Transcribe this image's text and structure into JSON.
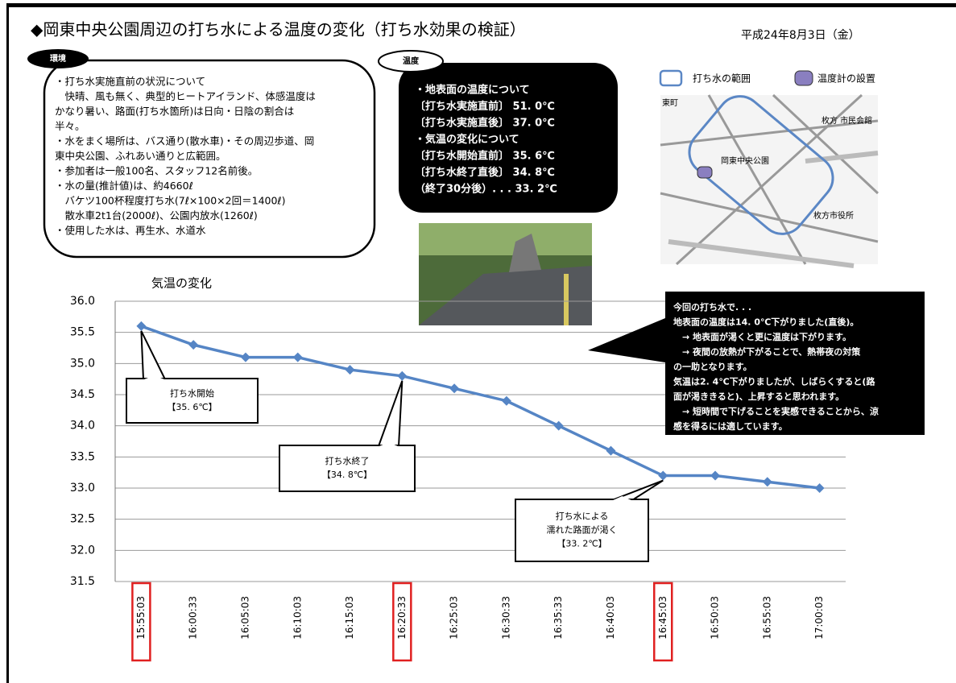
{
  "header": {
    "title": "◆岡東中央公園周辺の打ち水による温度の変化（打ち水効果の検証）",
    "date": "平成24年8月3日（金）"
  },
  "environment": {
    "label": "環境",
    "lines": [
      "・打ち水実施直前の状況について",
      "　快晴、風も無く、典型的ヒートアイランド、体感温度は",
      "かなり暑い、路面(打ち水箇所)は日向・日陰の割合は",
      "半々。",
      "・水をまく場所は、バス通り(散水車)・その周辺歩道、岡",
      "東中央公園、ふれあい通りと広範囲。",
      "・参加者は一般100名、スタッフ12名前後。",
      "・水の量(推計値)は、約4660ℓ",
      "　バケツ100杯程度打ち水(7ℓ×100×2回＝1400ℓ)",
      "　散水車2t1台(2000ℓ)、公園内放水(1260ℓ)",
      "・使用した水は、再生水、水道水"
    ]
  },
  "temperature": {
    "label": "温度",
    "lines": [
      "・地表面の温度について",
      "〔打ち水実施直前〕 51. 0℃",
      "〔打ち水実施直後〕 37. 0℃",
      "・気温の変化について",
      "〔打ち水開始直前〕 35. 6℃",
      "〔打ち水終了直後〕 34. 8℃",
      "（終了30分後）. . . 33. 2℃"
    ]
  },
  "map": {
    "legend": [
      "打ち水の範囲",
      "温度計の設置"
    ],
    "labels": [
      "東町",
      "枚方 市民会館",
      "岡東中央公園",
      "枚方市役所"
    ]
  },
  "summary": {
    "lines": [
      "今回の打ち水で. . .",
      "地表面の温度は14. 0℃下がりました(直後)。",
      "　→ 地表面が渇くと更に温度は下がります。",
      "　→ 夜間の放熱が下がることで、熱帯夜の対策",
      "の一助となります。",
      "気温は2. 4℃下がりましたが、しばらくすると(路",
      "面が渇ききると)、上昇すると思われます。",
      "　→ 短時間で下げることを実感できることから、涼",
      "感を得るには適しています。"
    ]
  },
  "chart_data": {
    "type": "line",
    "title": "気温の変化",
    "categories": [
      "15:55:03",
      "16:00:33",
      "16:05:03",
      "16:10:03",
      "16:15:03",
      "16:20:33",
      "16:25:03",
      "16:30:33",
      "16:35:33",
      "16:40:03",
      "16:45:03",
      "16:50:03",
      "16:55:03",
      "17:00:03"
    ],
    "values": [
      35.6,
      35.3,
      35.1,
      35.1,
      34.9,
      34.8,
      34.6,
      34.4,
      34.0,
      33.6,
      33.2,
      33.2,
      33.1,
      33.0
    ],
    "color": "#5585c5",
    "highlight": [
      0,
      5,
      10
    ],
    "highlight_color": "#e02020",
    "ylim": [
      31.5,
      36.0
    ],
    "yticks": [
      {
        "value": 31.5,
        "label": "31.5"
      },
      {
        "value": 32,
        "label": "32.0"
      },
      32.5,
      {
        "value": 33,
        "label": "33.0"
      },
      33.5,
      {
        "value": 34,
        "label": "34.0"
      },
      34.5,
      {
        "value": 35,
        "label": "35.0"
      },
      35.5,
      {
        "value": 36,
        "label": "36.0"
      }
    ],
    "grid": true,
    "annotations": [
      {
        "lines": [
          "打ち水開始",
          "【35. 6℃】"
        ]
      },
      {
        "lines": [
          "打ち水終了",
          "【34. 8℃】"
        ]
      },
      {
        "lines": [
          "打ち水による",
          "濡れた路面が渇く",
          "【33. 2℃】"
        ]
      }
    ]
  }
}
